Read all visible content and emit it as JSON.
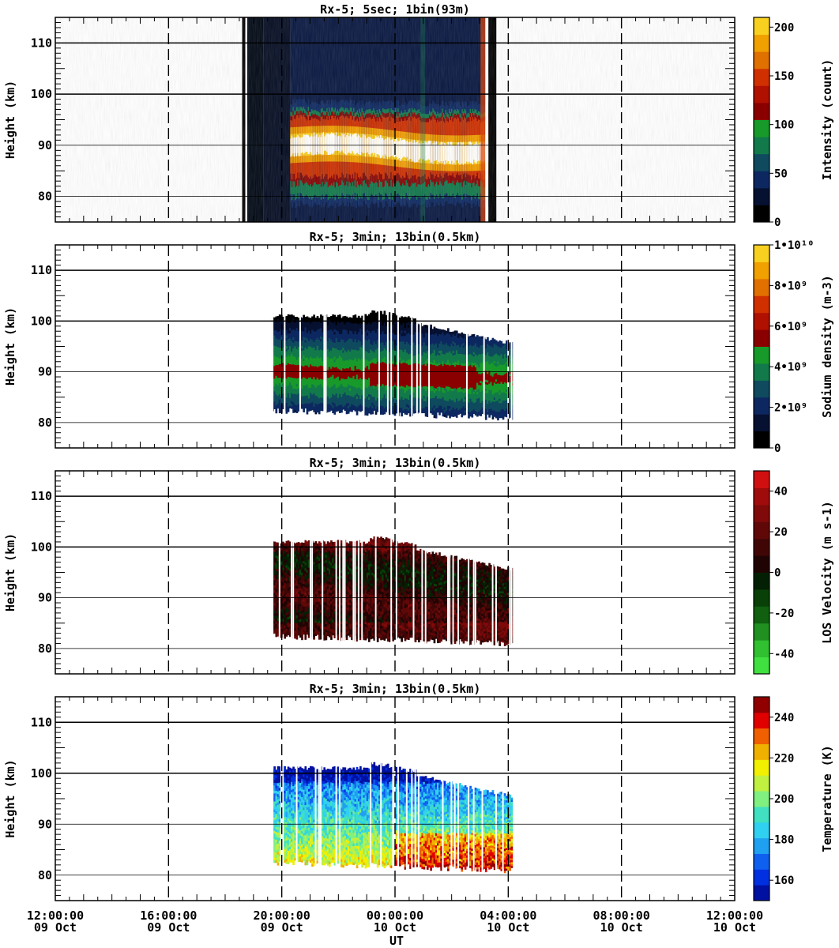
{
  "chart_data": [
    {
      "type": "heatmap",
      "title": "Rx-5;  5sec; 1bin(93m)",
      "ylabel": "Height (km)",
      "ylim": [
        75,
        115
      ],
      "yticks": [
        80,
        90,
        100,
        110
      ],
      "xlim_hours": [
        0,
        24
      ],
      "colorbar": {
        "label": "Intensity (count)",
        "ticks": [
          "0",
          "50",
          "100",
          "150",
          "200"
        ],
        "range": [
          0,
          210
        ],
        "colors": [
          "#000000",
          "#061030",
          "#0d2860",
          "#0f4a5e",
          "#127a4a",
          "#189a2a",
          "#8a0000",
          "#b01000",
          "#d03000",
          "#e07000",
          "#f0a000",
          "#f8d020"
        ]
      },
      "data_window_hours": [
        6.6,
        15.2
      ],
      "profile_km": [
        78,
        86,
        90,
        95,
        100
      ],
      "notes_layers": [
        {
          "center_km": 90,
          "peak": "white"
        }
      ]
    },
    {
      "type": "heatmap",
      "title": "Rx-5; 3min; 13bin(0.5km)",
      "ylabel": "Height (km)",
      "ylim": [
        75,
        115
      ],
      "yticks": [
        80,
        90,
        100,
        110
      ],
      "xlim_hours": [
        0,
        24
      ],
      "colorbar": {
        "label": "Sodium density (m-3)",
        "ticks": [
          "0",
          "2•10⁹",
          "4•10⁹",
          "6•10⁹",
          "8•10⁹",
          "1•10¹⁰"
        ],
        "range": [
          0,
          10
        ],
        "colors": [
          "#000000",
          "#061030",
          "#0d2860",
          "#0f4a5e",
          "#127a4a",
          "#189a2a",
          "#8a0000",
          "#b01000",
          "#d03000",
          "#e07000",
          "#f0a000",
          "#f8d020"
        ]
      },
      "data_window_hours": [
        7.65,
        16.15
      ]
    },
    {
      "type": "heatmap",
      "title": "Rx-5; 3min; 13bin(0.5km)",
      "ylabel": "Height (km)",
      "ylim": [
        75,
        115
      ],
      "yticks": [
        80,
        90,
        100,
        110
      ],
      "xlim_hours": [
        0,
        24
      ],
      "colorbar": {
        "label": "LOS Velocity (m s-1)",
        "ticks": [
          "-40",
          "-20",
          "0",
          "20",
          "40"
        ],
        "range": [
          -50,
          50
        ],
        "colors": [
          "#40e040",
          "#30c030",
          "#209020",
          "#106010",
          "#084008",
          "#042004",
          "#200404",
          "#400606",
          "#600808",
          "#800a0a",
          "#a00c0c",
          "#d01010"
        ]
      },
      "data_window_hours": [
        7.65,
        16.15
      ]
    },
    {
      "type": "heatmap",
      "title": "Rx-5; 3min; 13bin(0.5km)",
      "ylabel": "Height (km)",
      "ylim": [
        75,
        115
      ],
      "yticks": [
        80,
        90,
        100,
        110
      ],
      "xlim_hours": [
        0,
        24
      ],
      "colorbar": {
        "label": "Temperature (K)",
        "ticks": [
          "160",
          "180",
          "200",
          "220",
          "240"
        ],
        "range": [
          150,
          250
        ],
        "colors": [
          "#0010a0",
          "#0030e0",
          "#1060f0",
          "#20a0f0",
          "#30d0f0",
          "#40e0c0",
          "#80f080",
          "#c0f040",
          "#f0f000",
          "#f0b000",
          "#f06000",
          "#e00000",
          "#900000"
        ]
      },
      "data_window_hours": [
        7.65,
        16.15
      ]
    }
  ],
  "xaxis": {
    "label": "UT",
    "ticks": [
      {
        "hours": 0,
        "time": "12:00:00",
        "day": "09 Oct"
      },
      {
        "hours": 4,
        "time": "16:00:00",
        "day": "09 Oct"
      },
      {
        "hours": 8,
        "time": "20:00:00",
        "day": "09 Oct"
      },
      {
        "hours": 12,
        "time": "00:00:00",
        "day": "10 Oct"
      },
      {
        "hours": 16,
        "time": "04:00:00",
        "day": "10 Oct"
      },
      {
        "hours": 20,
        "time": "08:00:00",
        "day": "10 Oct"
      },
      {
        "hours": 24,
        "time": "12:00:00",
        "day": "10 Oct"
      }
    ]
  }
}
